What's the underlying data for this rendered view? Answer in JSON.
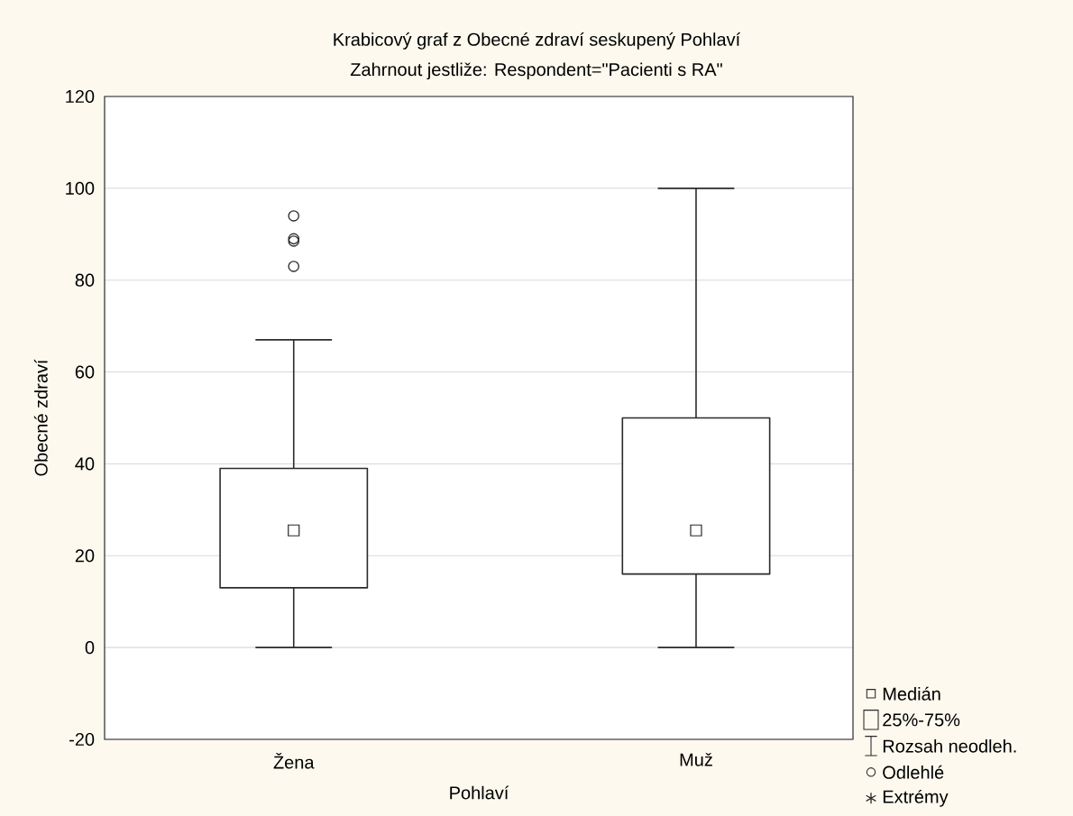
{
  "chart_data": {
    "type": "box",
    "title": "Krabicový graf z Obecné zdraví seskupený Pohlaví",
    "subtitle": "Zahrnout jestliže: Respondent=\"Pacienti s RA\"",
    "xlabel": "Pohlaví",
    "ylabel": "Obecné zdraví",
    "categories": [
      "Žena",
      "Muž"
    ],
    "boxes": [
      {
        "low": 0,
        "q1": 13,
        "median": 25.5,
        "q3": 39,
        "high": 67,
        "outliers": [
          83,
          88.5,
          89,
          94
        ]
      },
      {
        "low": 0,
        "q1": 16,
        "median": 25.5,
        "q3": 50,
        "high": 100
      }
    ],
    "ylim": [
      -20,
      120
    ],
    "yticks": [
      -20,
      0,
      20,
      40,
      60,
      80,
      100,
      120
    ],
    "grid": "y",
    "marker": "square",
    "annotations": [
      "Medián",
      "25%-75%",
      "Rozsah neodleh.",
      "Odlehlé",
      "Extrémy"
    ]
  }
}
